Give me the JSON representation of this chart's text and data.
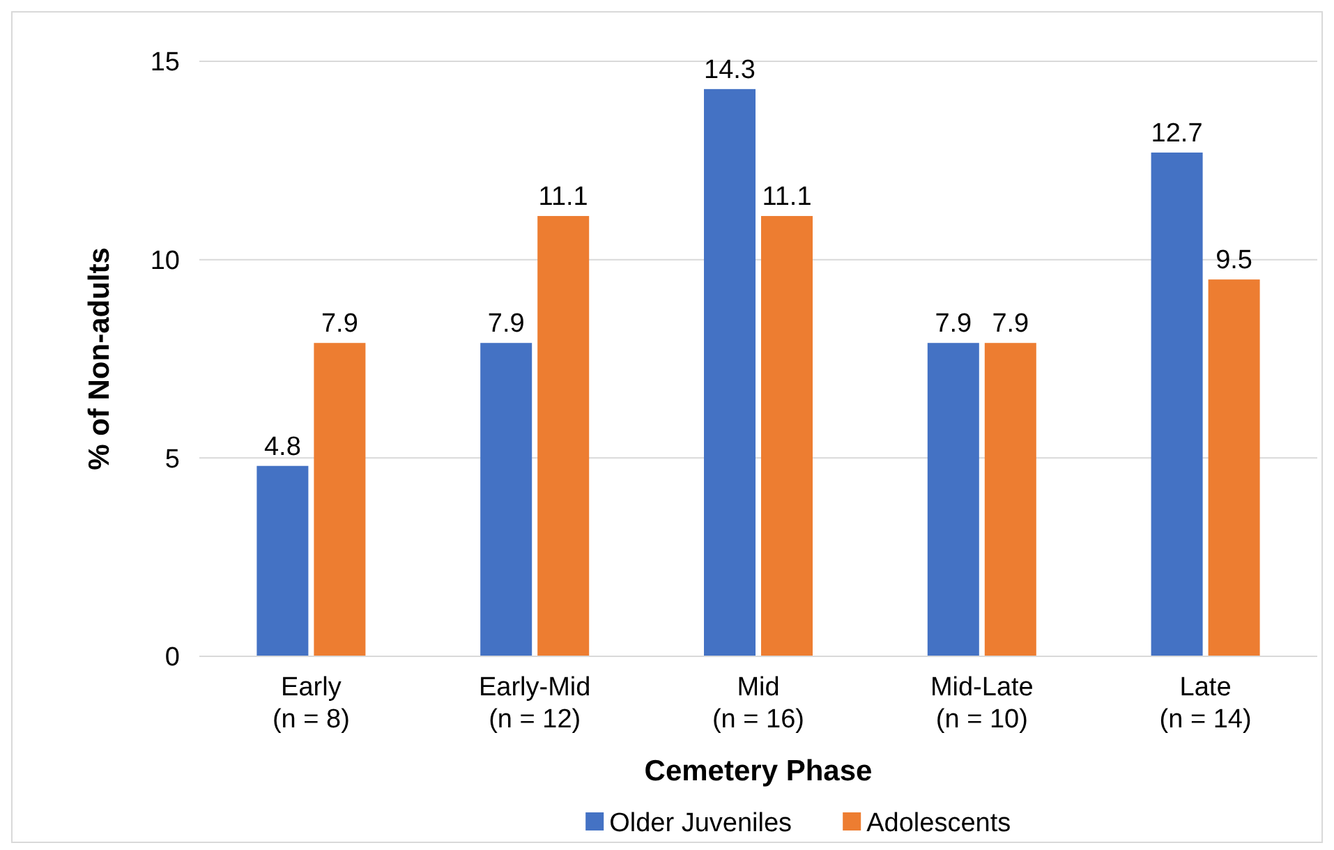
{
  "chart_data": {
    "type": "bar",
    "xlabel": "Cemetery Phase",
    "ylabel": "% of Non-adults",
    "categories": [
      "Early\n(n = 8)",
      "Early-Mid\n(n = 12)",
      "Mid\n(n = 16)",
      "Mid-Late\n(n = 10)",
      "Late\n(n = 14)"
    ],
    "series": [
      {
        "name": "Older Juveniles",
        "color": "#4472c4",
        "values": [
          4.8,
          7.9,
          14.3,
          7.9,
          12.7
        ]
      },
      {
        "name": "Adolescents",
        "color": "#ed7d31",
        "values": [
          7.9,
          11.1,
          11.1,
          7.9,
          9.5
        ]
      }
    ],
    "ylim": [
      0,
      15
    ],
    "yticks": [
      0,
      5,
      10,
      15
    ],
    "grid": "y",
    "data_labels": true,
    "legend": "bottom"
  }
}
